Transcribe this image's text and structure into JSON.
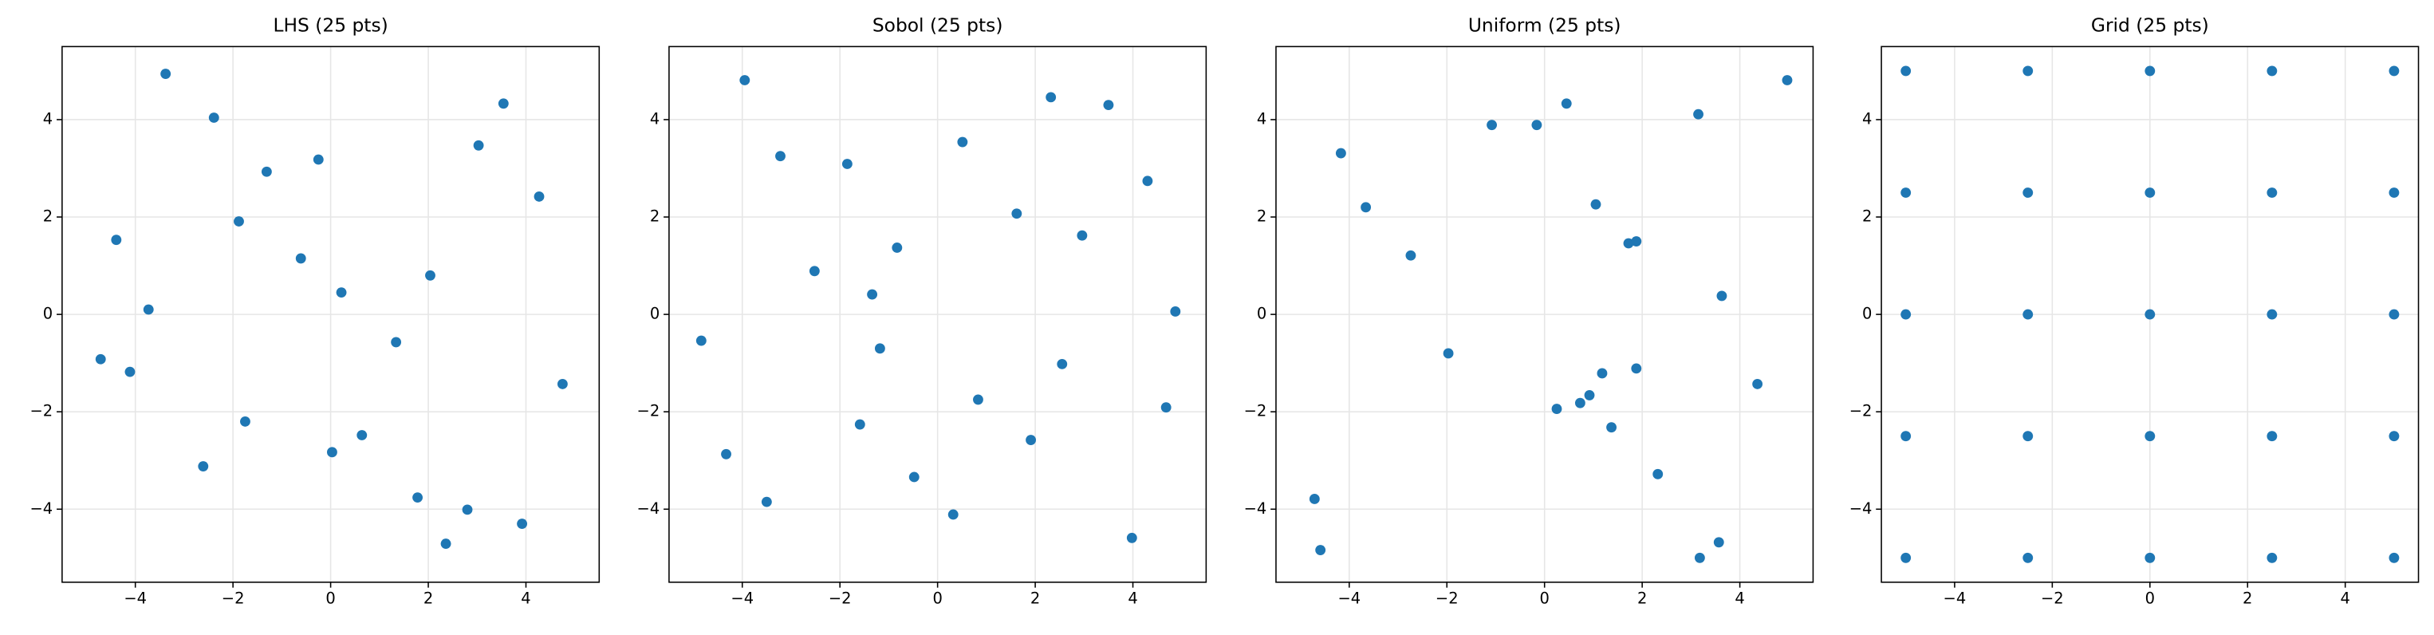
{
  "chart_data": [
    {
      "type": "scatter",
      "title": "LHS (25 pts)",
      "color": "#1f77b4",
      "grid": true,
      "xlim": [
        -5.5,
        5.5
      ],
      "ylim": [
        -5.5,
        5.5
      ],
      "xticks": [
        {
          "value": -4,
          "label": "−4"
        },
        {
          "value": -2,
          "label": "−2"
        },
        0,
        2,
        4
      ],
      "yticks": [
        {
          "value": -4,
          "label": "−4"
        },
        {
          "value": -2,
          "label": "−2"
        },
        0,
        2,
        4
      ],
      "x": [
        -4.71,
        -4.39,
        -4.11,
        -3.73,
        -3.38,
        -2.61,
        -2.39,
        -1.88,
        -1.75,
        -1.31,
        -0.61,
        -0.25,
        0.03,
        0.22,
        0.64,
        1.34,
        1.78,
        2.04,
        2.36,
        2.8,
        3.92,
        3.03,
        3.54,
        4.27,
        4.75
      ],
      "y": [
        -0.92,
        1.53,
        -1.18,
        0.1,
        4.94,
        -3.12,
        4.04,
        1.91,
        -2.2,
        2.93,
        1.15,
        3.18,
        -2.83,
        0.45,
        -2.48,
        -0.57,
        -3.76,
        0.8,
        -4.71,
        -4.01,
        -4.3,
        3.47,
        4.33,
        2.42,
        -1.43
      ]
    },
    {
      "type": "scatter",
      "title": "Sobol (25 pts)",
      "color": "#1f77b4",
      "grid": true,
      "xlim": [
        -5.5,
        5.5
      ],
      "ylim": [
        -5.5,
        5.5
      ],
      "xticks": [
        {
          "value": -4,
          "label": "−4"
        },
        {
          "value": -2,
          "label": "−2"
        },
        0,
        2,
        4
      ],
      "yticks": [
        {
          "value": -4,
          "label": "−4"
        },
        {
          "value": -2,
          "label": "−2"
        },
        0,
        2,
        4
      ],
      "x": [
        -4.84,
        -4.33,
        -3.95,
        -3.5,
        -3.22,
        -2.52,
        -1.85,
        -1.59,
        -1.34,
        -1.18,
        -0.83,
        -0.48,
        0.32,
        0.51,
        0.83,
        1.62,
        1.91,
        2.32,
        2.55,
        2.96,
        3.5,
        3.98,
        4.3,
        4.68,
        4.87
      ],
      "y": [
        -0.54,
        -2.87,
        4.81,
        -3.85,
        3.25,
        0.89,
        3.09,
        -2.26,
        0.41,
        -0.7,
        1.37,
        -3.34,
        -4.11,
        3.54,
        -1.75,
        2.07,
        -2.58,
        4.46,
        -1.02,
        1.62,
        4.3,
        -4.59,
        2.74,
        -1.91,
        0.06
      ]
    },
    {
      "type": "scatter",
      "title": "Uniform (25 pts)",
      "color": "#1f77b4",
      "grid": true,
      "xlim": [
        -5.5,
        5.5
      ],
      "ylim": [
        -5.5,
        5.5
      ],
      "xticks": [
        {
          "value": -4,
          "label": "−4"
        },
        {
          "value": -2,
          "label": "−2"
        },
        0,
        2,
        4
      ],
      "yticks": [
        {
          "value": -4,
          "label": "−4"
        },
        {
          "value": -2,
          "label": "−2"
        },
        0,
        2,
        4
      ],
      "x": [
        -4.71,
        -4.59,
        -4.17,
        -3.66,
        -2.74,
        -1.97,
        -1.08,
        -0.16,
        0.25,
        0.45,
        0.73,
        0.92,
        1.05,
        1.18,
        1.37,
        1.72,
        1.88,
        1.88,
        2.32,
        3.15,
        3.18,
        3.57,
        3.63,
        4.36,
        4.97
      ],
      "y": [
        -3.79,
        -4.84,
        3.31,
        2.2,
        1.21,
        -0.8,
        3.89,
        3.89,
        -1.94,
        4.33,
        -1.82,
        -1.66,
        2.26,
        -1.21,
        -2.32,
        1.46,
        1.5,
        -1.11,
        -3.28,
        4.11,
        -5.0,
        -4.68,
        0.38,
        -1.43,
        4.81
      ]
    },
    {
      "type": "scatter",
      "title": "Grid (25 pts)",
      "color": "#1f77b4",
      "grid": true,
      "xlim": [
        -5.5,
        5.5
      ],
      "ylim": [
        -5.5,
        5.5
      ],
      "xticks": [
        {
          "value": -4,
          "label": "−4"
        },
        {
          "value": -2,
          "label": "−2"
        },
        0,
        2,
        4
      ],
      "yticks": [
        {
          "value": -4,
          "label": "−4"
        },
        {
          "value": -2,
          "label": "−2"
        },
        0,
        2,
        4
      ],
      "x": [
        -5,
        -2.5,
        0,
        2.5,
        5,
        -5,
        -2.5,
        0,
        2.5,
        5,
        -5,
        -2.5,
        0,
        2.5,
        5,
        -5,
        -2.5,
        0,
        2.5,
        5,
        -5,
        -2.5,
        0,
        2.5,
        5
      ],
      "y": [
        -5,
        -5,
        -5,
        -5,
        -5,
        -2.5,
        -2.5,
        -2.5,
        -2.5,
        -2.5,
        0,
        0,
        0,
        0,
        0,
        2.5,
        2.5,
        2.5,
        2.5,
        2.5,
        5,
        5,
        5,
        5,
        5
      ]
    }
  ]
}
